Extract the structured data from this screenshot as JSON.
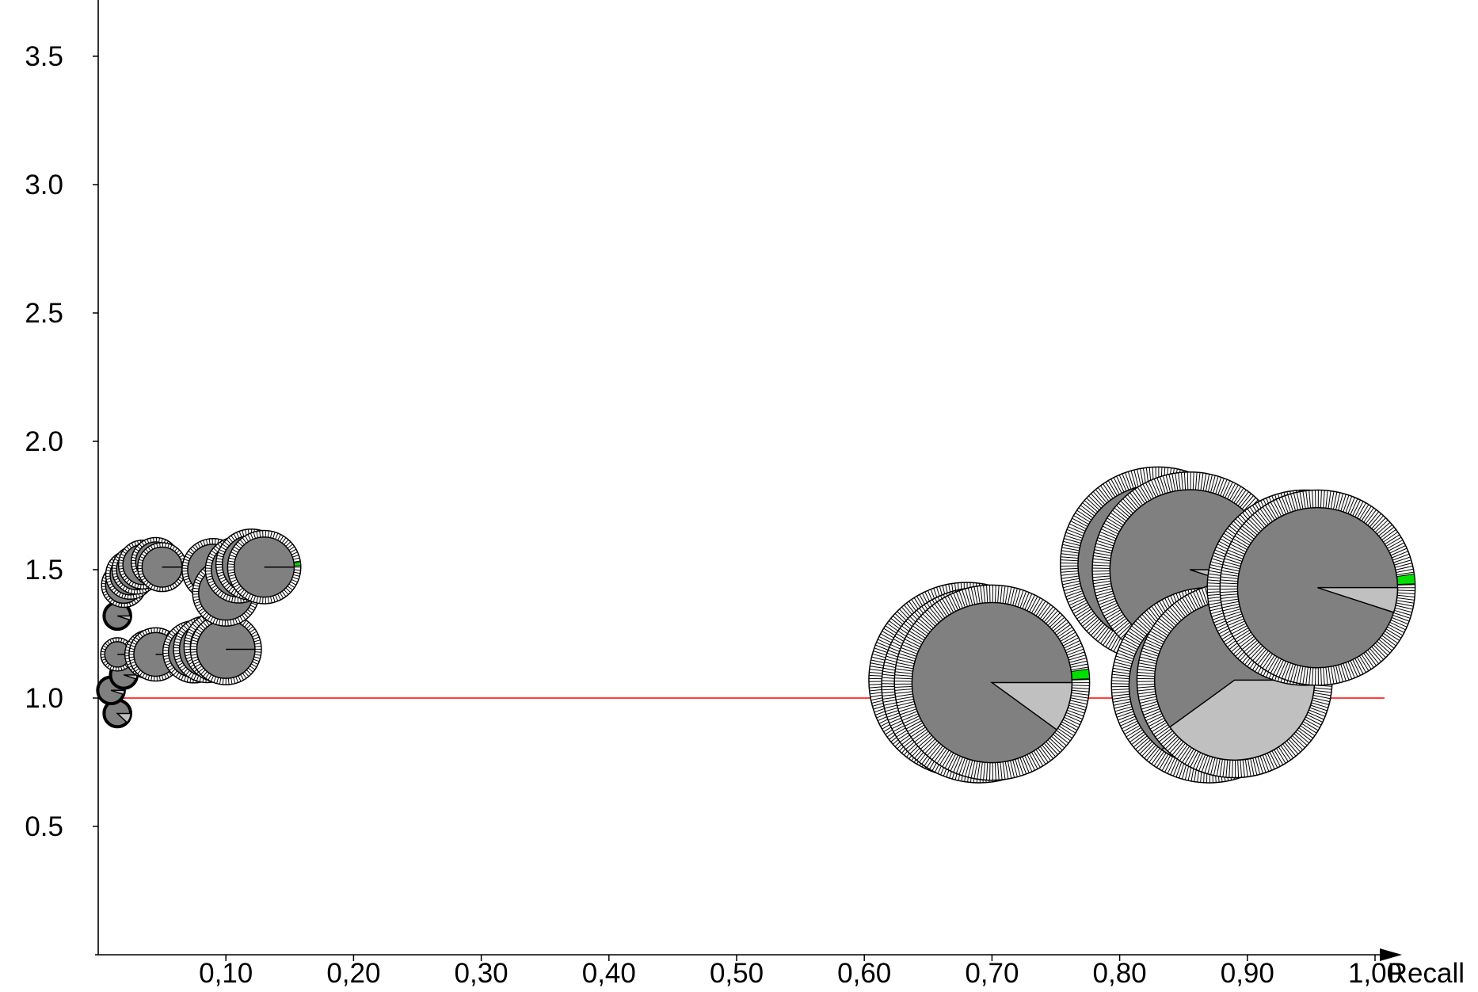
{
  "chart_data": {
    "type": "scatter",
    "title": "",
    "xlabel": "Recall",
    "ylabel": "",
    "xlim": [
      0.0,
      1.0
    ],
    "ylim": [
      0.0,
      3.5
    ],
    "grid": false,
    "legend": "none",
    "x_ticks": [
      "0,10",
      "0,20",
      "0,30",
      "0,40",
      "0,50",
      "0,60",
      "0,70",
      "0,80",
      "0,90",
      "1,00"
    ],
    "y_ticks": [
      "0.5",
      "1.0",
      "1.5",
      "2.0",
      "2.5",
      "3.0",
      "3.5"
    ],
    "reference_line": {
      "y": 1.0,
      "color": "#ff0000"
    },
    "colors": {
      "pie_main": "#808080",
      "pie_minor": "#c0c0c0",
      "ring": "#ffffff",
      "highlight": "#00e000",
      "reference": "#ff0000"
    },
    "points": [
      {
        "x": 0.015,
        "y": 0.94,
        "size": 0.12,
        "minor": 0.12,
        "ring": false
      },
      {
        "x": 0.01,
        "y": 1.03,
        "size": 0.12,
        "minor": 0.05,
        "ring": false
      },
      {
        "x": 0.02,
        "y": 1.09,
        "size": 0.12,
        "minor": 0.05,
        "ring": false
      },
      {
        "x": 0.015,
        "y": 1.32,
        "size": 0.12,
        "minor": 0.05,
        "ring": false
      },
      {
        "x": 0.015,
        "y": 1.17,
        "size": 0.15,
        "minor": 0.0,
        "ring": true
      },
      {
        "x": 0.02,
        "y": 1.44,
        "size": 0.2,
        "minor": 0.0,
        "ring": true
      },
      {
        "x": 0.025,
        "y": 1.48,
        "size": 0.22,
        "minor": 0.0,
        "ring": true
      },
      {
        "x": 0.03,
        "y": 1.5,
        "size": 0.22,
        "minor": 0.0,
        "ring": true
      },
      {
        "x": 0.035,
        "y": 1.52,
        "size": 0.22,
        "minor": 0.0,
        "ring": true
      },
      {
        "x": 0.045,
        "y": 1.53,
        "size": 0.22,
        "minor": 0.0,
        "ring": true
      },
      {
        "x": 0.05,
        "y": 1.51,
        "size": 0.22,
        "minor": 0.0,
        "ring": true
      },
      {
        "x": 0.04,
        "y": 1.17,
        "size": 0.22,
        "minor": 0.0,
        "ring": true
      },
      {
        "x": 0.045,
        "y": 1.17,
        "size": 0.24,
        "minor": 0.0,
        "ring": true
      },
      {
        "x": 0.075,
        "y": 1.18,
        "size": 0.28,
        "minor": 0.0,
        "ring": true
      },
      {
        "x": 0.085,
        "y": 1.19,
        "size": 0.3,
        "minor": 0.0,
        "ring": true
      },
      {
        "x": 0.095,
        "y": 1.2,
        "size": 0.32,
        "minor": 0.0,
        "ring": true
      },
      {
        "x": 0.1,
        "y": 1.19,
        "size": 0.32,
        "minor": 0.0,
        "ring": true
      },
      {
        "x": 0.09,
        "y": 1.5,
        "size": 0.28,
        "minor": 0.0,
        "ring": true
      },
      {
        "x": 0.1,
        "y": 1.41,
        "size": 0.3,
        "minor": 0.0,
        "ring": true
      },
      {
        "x": 0.11,
        "y": 1.5,
        "size": 0.3,
        "minor": 0.0,
        "ring": true
      },
      {
        "x": 0.12,
        "y": 1.52,
        "size": 0.32,
        "minor": 0.0,
        "ring": true
      },
      {
        "x": 0.13,
        "y": 1.51,
        "size": 0.33,
        "minor": 0.0,
        "ring": true,
        "highlight": true
      },
      {
        "x": 0.68,
        "y": 1.07,
        "size": 0.88,
        "minor": 0.1,
        "ring": true
      },
      {
        "x": 0.69,
        "y": 1.05,
        "size": 0.88,
        "minor": 0.1,
        "ring": true
      },
      {
        "x": 0.7,
        "y": 1.06,
        "size": 0.88,
        "minor": 0.1,
        "ring": true,
        "highlight": true
      },
      {
        "x": 0.83,
        "y": 1.52,
        "size": 0.88,
        "minor": 0.05,
        "ring": true
      },
      {
        "x": 0.855,
        "y": 1.5,
        "size": 0.88,
        "minor": 0.05,
        "ring": true
      },
      {
        "x": 0.87,
        "y": 1.05,
        "size": 0.88,
        "minor": 0.35,
        "ring": true
      },
      {
        "x": 0.89,
        "y": 1.07,
        "size": 0.88,
        "minor": 0.4,
        "ring": true
      },
      {
        "x": 0.945,
        "y": 1.43,
        "size": 0.88,
        "minor": 0.0,
        "ring": true
      },
      {
        "x": 0.955,
        "y": 1.43,
        "size": 0.88,
        "minor": 0.05,
        "ring": true,
        "highlight": true
      }
    ]
  }
}
